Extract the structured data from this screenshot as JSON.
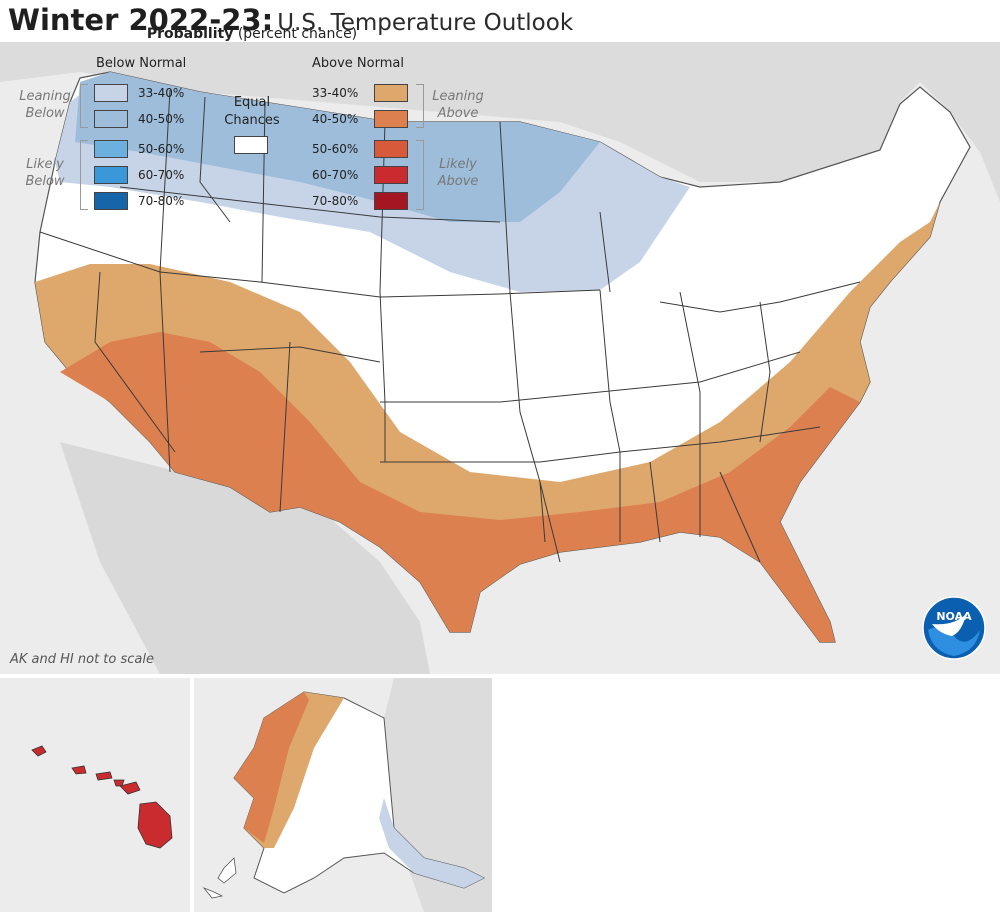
{
  "title": {
    "main": "Winter 2022-23:",
    "sub": "U.S. Temperature Outlook"
  },
  "map": {
    "scale_note": "AK and HI not to scale",
    "logo_text": "NOAA"
  },
  "legend": {
    "title": "Probability",
    "title_sub": "(percent chance)",
    "below_header": "Below Normal",
    "above_header": "Above Normal",
    "equal_chances": "Equal Chances",
    "leaning_below": "Leaning Below",
    "likely_below": "Likely Below",
    "leaning_above": "Leaning Above",
    "likely_above": "Likely Above",
    "below": [
      {
        "label": "33-40%",
        "color": "#c7d4e8"
      },
      {
        "label": "40-50%",
        "color": "#9dbdda"
      },
      {
        "label": "50-60%",
        "color": "#6cb0e0"
      },
      {
        "label": "60-70%",
        "color": "#3a97d8"
      },
      {
        "label": "70-80%",
        "color": "#1565a8"
      }
    ],
    "above": [
      {
        "label": "33-40%",
        "color": "#dea86c"
      },
      {
        "label": "40-50%",
        "color": "#dd8050"
      },
      {
        "label": "50-60%",
        "color": "#d75a3a"
      },
      {
        "label": "60-70%",
        "color": "#c92b2f"
      },
      {
        "label": "70-80%",
        "color": "#a41722"
      }
    ],
    "equal_color": "#ffffff"
  }
}
